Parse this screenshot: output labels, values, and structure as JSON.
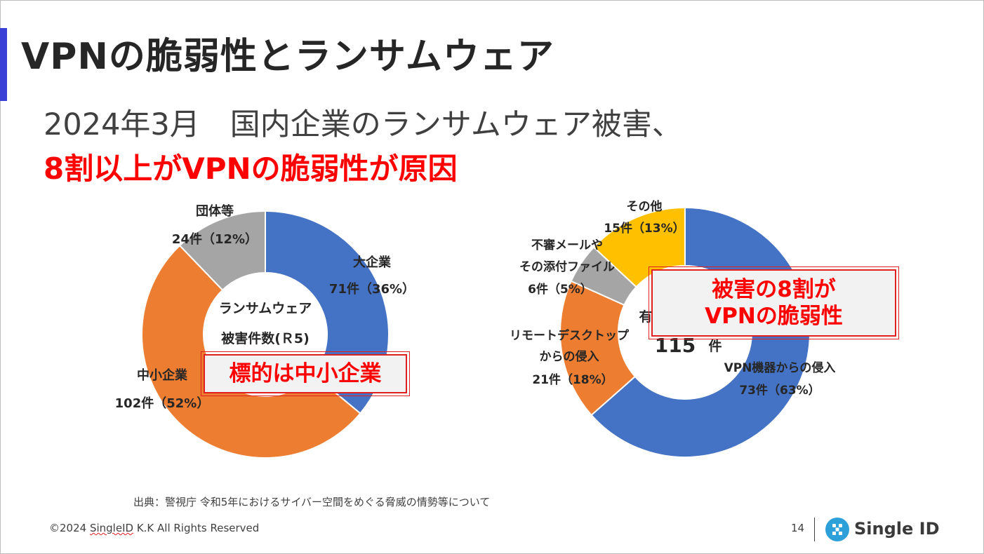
{
  "slide": {
    "title": "VPNの脆弱性とランサムウェア",
    "subtitle_line1": "2024年3月　国内企業のランサムウェア被害、",
    "subtitle_line2": "8割以上がVPNの脆弱性が原因",
    "callout_left": "標的は中小企業",
    "callout_right_line1": "被害の8割が",
    "callout_right_line2": "VPNの脆弱性",
    "source": "出典：警視庁 令和5年におけるサイバー空間をめぐる脅威の情勢等について",
    "copyright_prefix": "©2024 ",
    "copyright_brand": "SingleID",
    "copyright_suffix": " K.K All Rights Reserved",
    "page_number": "14",
    "logo_text": "Single ID",
    "logo_icon": "single-id-logo-icon",
    "accent_color": "#3a3fd6",
    "highlight_color": "#ff0000"
  },
  "chart_data": [
    {
      "type": "pie",
      "donut": true,
      "center_label_line1": "ランサムウェア",
      "center_label_line2": "被害件数(Ｒ5)",
      "slices": [
        {
          "label": "大企業",
          "value": 71,
          "value_label": "71件（36%）",
          "color": "#4472c4"
        },
        {
          "label": "中小企業",
          "value": 102,
          "value_label": "102件（52%）",
          "color": "#ed7d31"
        },
        {
          "label": "団体等",
          "value": 24,
          "value_label": "24件（12%）",
          "color": "#a5a5a5"
        }
      ]
    },
    {
      "type": "pie",
      "donut": true,
      "center_label_line1": "有",
      "center_label_total": "115",
      "center_label_unit": "件",
      "slices": [
        {
          "label": "VPN機器からの侵入",
          "value": 73,
          "value_label": "73件（63%）",
          "color": "#4472c4"
        },
        {
          "label": "リモートデスクトップからの侵入",
          "label_line1": "リモートデスクトップ",
          "label_line2": "からの侵入",
          "value": 21,
          "value_label": "21件（18%）",
          "color": "#ed7d31"
        },
        {
          "label": "不審メールやその添付ファイル",
          "label_line1": "不審メールや",
          "label_line2": "その添付ファイル",
          "value": 6,
          "value_label": "6件（5%）",
          "color": "#a5a5a5"
        },
        {
          "label": "その他",
          "value": 15,
          "value_label": "15件（13%）",
          "color": "#ffc000"
        }
      ]
    }
  ]
}
